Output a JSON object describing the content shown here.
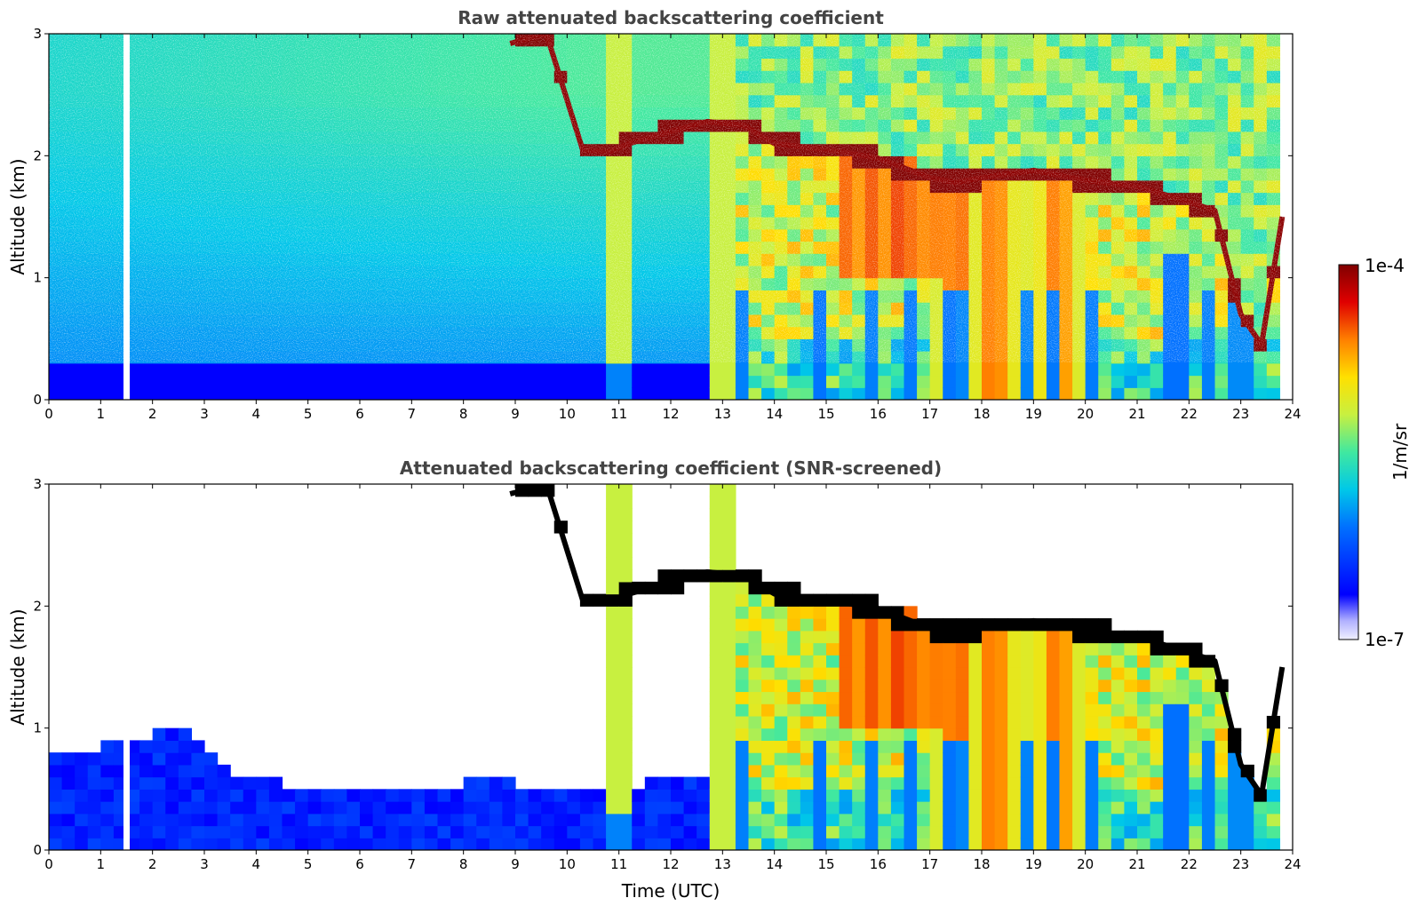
{
  "chart_data": [
    {
      "type": "heatmap",
      "title": "Raw attenuated backscattering coefficient",
      "xlabel": "",
      "ylabel": "Altitude (km)",
      "xlim": [
        0,
        24
      ],
      "ylim": [
        0,
        3
      ],
      "xticks": [
        "0",
        "1",
        "2",
        "3",
        "4",
        "5",
        "6",
        "7",
        "8",
        "9",
        "10",
        "11",
        "12",
        "13",
        "14",
        "15",
        "16",
        "17",
        "18",
        "19",
        "20",
        "21",
        "22",
        "23",
        "24"
      ],
      "yticks": [
        "0",
        "1",
        "2",
        "3"
      ],
      "screened": false,
      "data_gap_utc": 1.5,
      "data_end_utc": 23.8,
      "cloud_base_km": [
        {
          "t": 8.9,
          "z": 2.92
        },
        {
          "t": 9.6,
          "z": 3.0
        },
        {
          "t": 10.3,
          "z": 2.05
        },
        {
          "t": 10.8,
          "z": 2.03
        },
        {
          "t": 11.2,
          "z": 2.1
        },
        {
          "t": 12.0,
          "z": 2.2
        },
        {
          "t": 12.7,
          "z": 2.28
        },
        {
          "t": 13.4,
          "z": 2.25
        },
        {
          "t": 14.0,
          "z": 2.1
        },
        {
          "t": 15.0,
          "z": 2.05
        },
        {
          "t": 16.0,
          "z": 1.98
        },
        {
          "t": 17.0,
          "z": 1.82
        },
        {
          "t": 17.5,
          "z": 1.78
        },
        {
          "t": 18.0,
          "z": 1.82
        },
        {
          "t": 19.0,
          "z": 1.88
        },
        {
          "t": 20.0,
          "z": 1.8
        },
        {
          "t": 21.0,
          "z": 1.75
        },
        {
          "t": 22.0,
          "z": 1.62
        },
        {
          "t": 22.5,
          "z": 1.55
        },
        {
          "t": 23.0,
          "z": 0.7
        },
        {
          "t": 23.4,
          "z": 0.45
        },
        {
          "t": 23.8,
          "z": 1.5
        }
      ]
    },
    {
      "type": "heatmap",
      "title": "Attenuated backscattering coefficient (SNR-screened)",
      "xlabel": "Time (UTC)",
      "ylabel": "Altitude (km)",
      "xlim": [
        0,
        24
      ],
      "ylim": [
        0,
        3
      ],
      "xticks": [
        "0",
        "1",
        "2",
        "3",
        "4",
        "5",
        "6",
        "7",
        "8",
        "9",
        "10",
        "11",
        "12",
        "13",
        "14",
        "15",
        "16",
        "17",
        "18",
        "19",
        "20",
        "21",
        "22",
        "23",
        "24"
      ],
      "yticks": [
        "0",
        "1",
        "2",
        "3"
      ],
      "screened": true,
      "data_gap_utc": 1.5,
      "data_end_utc": 23.8,
      "boundary_layer_top_km": [
        {
          "t": 0.0,
          "z": 0.85
        },
        {
          "t": 1.0,
          "z": 0.85
        },
        {
          "t": 2.0,
          "z": 0.95
        },
        {
          "t": 2.5,
          "z": 1.0
        },
        {
          "t": 3.0,
          "z": 0.9
        },
        {
          "t": 3.5,
          "z": 0.6
        },
        {
          "t": 4.0,
          "z": 0.6
        },
        {
          "t": 5.0,
          "z": 0.5
        },
        {
          "t": 6.0,
          "z": 0.45
        },
        {
          "t": 7.0,
          "z": 0.5
        },
        {
          "t": 8.0,
          "z": 0.55
        },
        {
          "t": 9.0,
          "z": 0.55
        },
        {
          "t": 10.0,
          "z": 0.5
        },
        {
          "t": 11.0,
          "z": 0.5
        },
        {
          "t": 12.0,
          "z": 0.6
        },
        {
          "t": 13.3,
          "z": 0.65
        }
      ]
    }
  ],
  "colorbar": {
    "label": "1/m/sr",
    "max_label": "1e-4",
    "min_label": "1e-7",
    "scale": "log",
    "colormap": [
      "#f0f0ff",
      "#b0b0ff",
      "#0000ff",
      "#0070ff",
      "#00c8e8",
      "#40e8a0",
      "#c8f040",
      "#ffe000",
      "#ff8000",
      "#e00000",
      "#800000"
    ]
  }
}
